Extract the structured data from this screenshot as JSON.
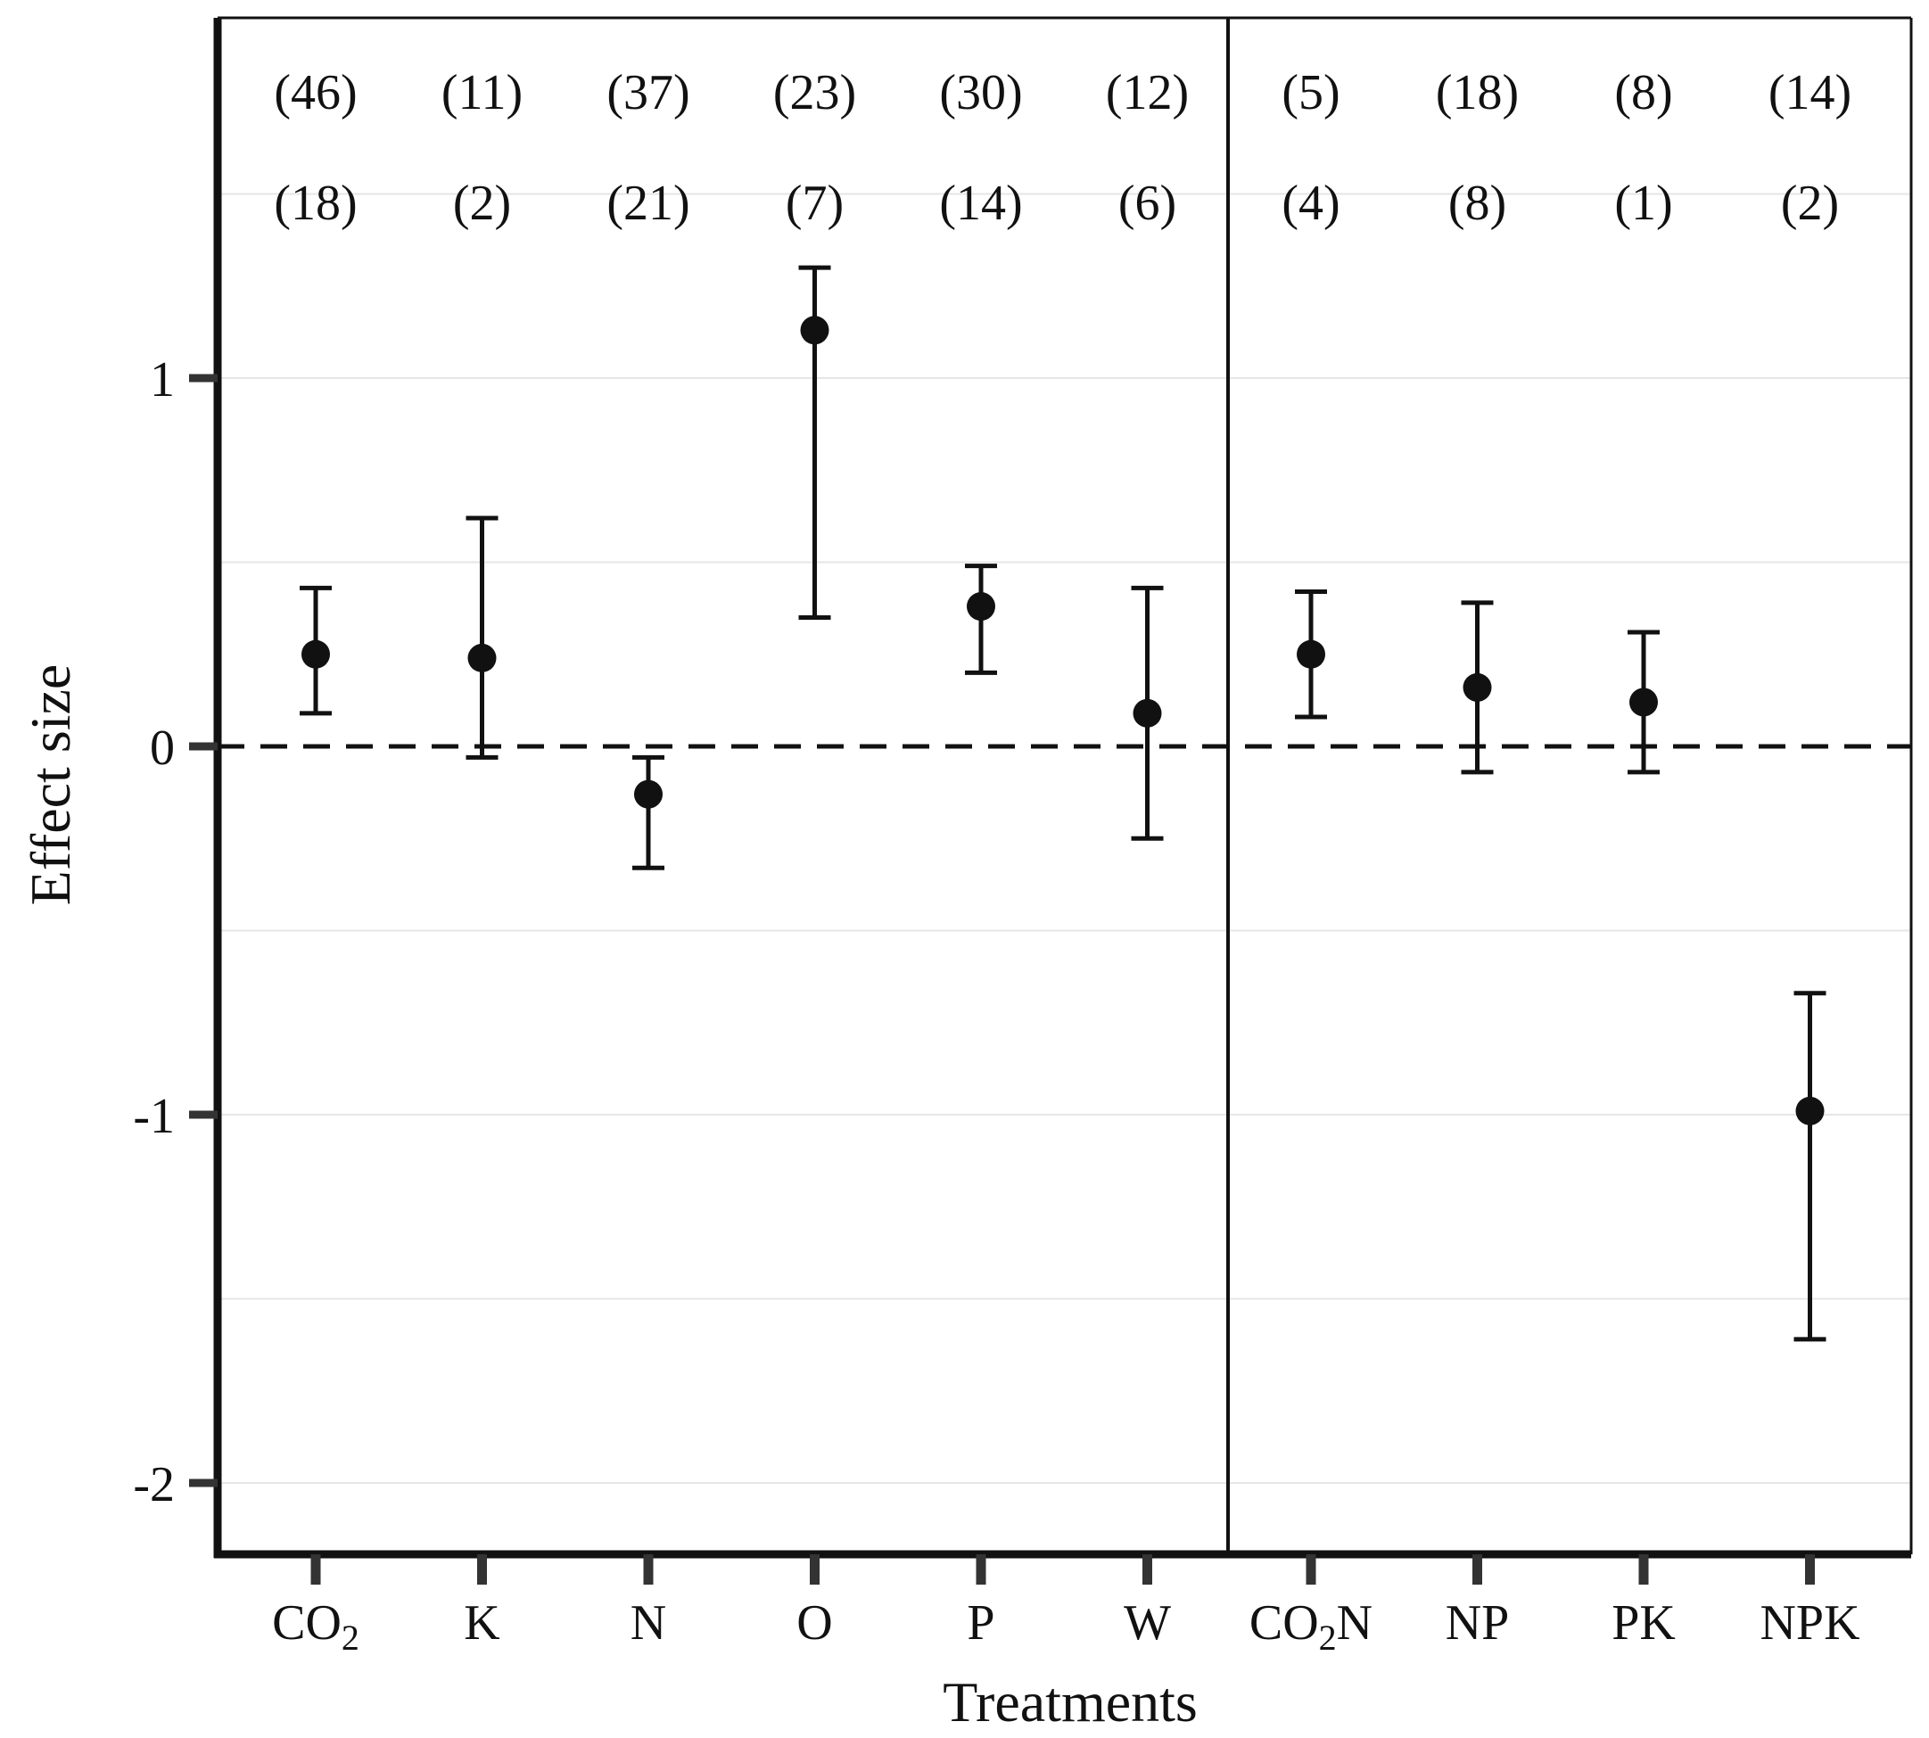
{
  "chart_data": {
    "type": "errorbar",
    "title": "",
    "xlabel": "Treatments",
    "ylabel": "Effect size",
    "ylim": [
      -2.2,
      2.0
    ],
    "yticks": [
      1,
      0,
      -1,
      -2
    ],
    "ytick_labels": [
      "1",
      "0",
      "-1",
      "-2"
    ],
    "reference_line": 0,
    "panels": [
      {
        "name": "single",
        "categories": [
          {
            "main": "CO",
            "sub": "2",
            "rest": ""
          },
          {
            "main": "K",
            "sub": "",
            "rest": ""
          },
          {
            "main": "N",
            "sub": "",
            "rest": ""
          },
          {
            "main": "O",
            "sub": "",
            "rest": ""
          },
          {
            "main": "P",
            "sub": "",
            "rest": ""
          },
          {
            "main": "W",
            "sub": "",
            "rest": ""
          }
        ],
        "values": [
          0.25,
          0.24,
          -0.13,
          1.13,
          0.38,
          0.09
        ],
        "lower": [
          0.09,
          -0.03,
          -0.33,
          0.35,
          0.2,
          -0.25
        ],
        "upper": [
          0.43,
          0.62,
          -0.03,
          1.3,
          0.49,
          0.43
        ],
        "counts_top": [
          "(46)",
          "(11)",
          "(37)",
          "(23)",
          "(30)",
          "(12)"
        ],
        "counts_bottom": [
          "(18)",
          "(2)",
          "(21)",
          "(7)",
          "(14)",
          "(6)"
        ]
      },
      {
        "name": "combined",
        "categories": [
          {
            "main": "CO",
            "sub": "2",
            "rest": "N"
          },
          {
            "main": "NP",
            "sub": "",
            "rest": ""
          },
          {
            "main": "PK",
            "sub": "",
            "rest": ""
          },
          {
            "main": "NPK",
            "sub": "",
            "rest": ""
          }
        ],
        "values": [
          0.25,
          0.16,
          0.12,
          -0.99
        ],
        "lower": [
          0.08,
          -0.07,
          -0.07,
          -1.61
        ],
        "upper": [
          0.42,
          0.39,
          0.31,
          -0.67
        ],
        "counts_top": [
          "(5)",
          "(18)",
          "(8)",
          "(14)"
        ],
        "counts_bottom": [
          "(4)",
          "(8)",
          "(1)",
          "(2)"
        ]
      }
    ]
  }
}
